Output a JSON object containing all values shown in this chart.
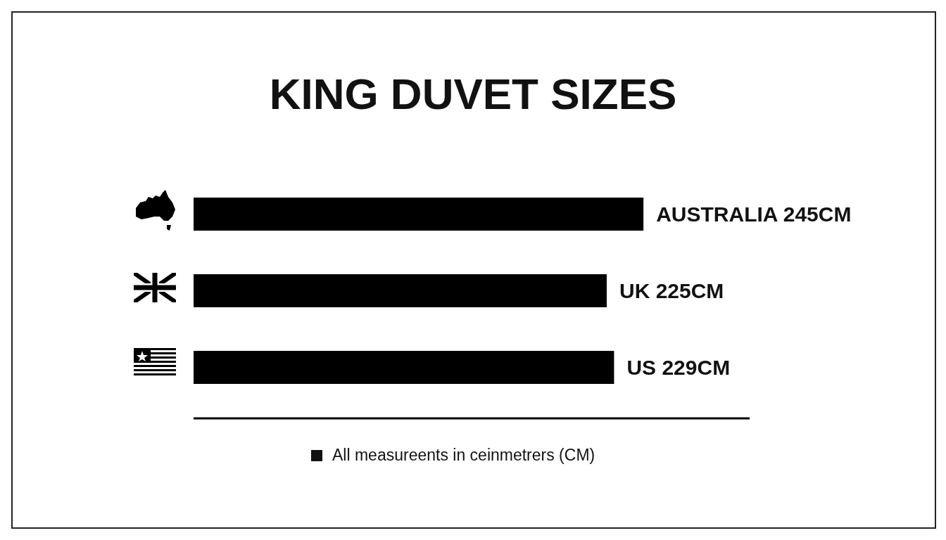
{
  "chart_data": {
    "type": "bar",
    "orientation": "horizontal",
    "title": "KING DUVET SIZES",
    "categories": [
      null,
      null,
      null
    ],
    "values": [
      245,
      225,
      229
    ],
    "value_labels": [
      "AUSTRALIA 245CM",
      "UK 225CM",
      "US 229CM"
    ],
    "color": "#000000",
    "annotations": [
      "All measureents in ceinmetrers (CM)"
    ]
  }
}
